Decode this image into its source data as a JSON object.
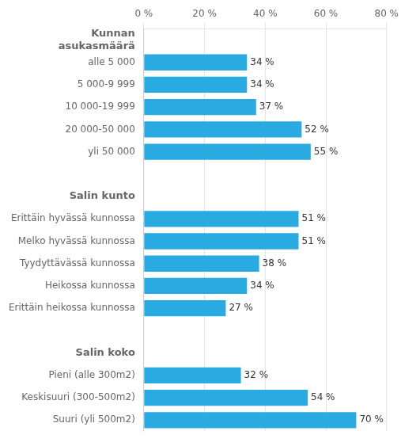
{
  "chart_data": {
    "type": "bar",
    "orientation": "horizontal",
    "categories": [
      "Kunnan\nasukasmäärä",
      "alle 5 000",
      "5 000-9 999",
      "10 000-19 999",
      "20 000-50 000",
      "yli 50 000",
      null,
      "Salin kunto",
      "Erittäin hyvässä kunnossa",
      "Melko hyvässä kunnossa",
      "Tyydyttävässä kunnossa",
      "Heikossa kunnossa",
      "Erittäin heikossa kunnossa",
      null,
      "Salin koko",
      "Pieni (alle 300m2)",
      "Keskisuuri (300-500m2)",
      "Suuri (yli 500m2)"
    ],
    "values": [
      null,
      34,
      34,
      37,
      52,
      55,
      null,
      null,
      51,
      51,
      38,
      34,
      27,
      null,
      null,
      32,
      54,
      70
    ],
    "value_labels": [
      null,
      "34 %",
      "34 %",
      "37 %",
      "52 %",
      "55 %",
      null,
      null,
      "51 %",
      "51 %",
      "38 %",
      "34 %",
      "27 %",
      null,
      null,
      "32 %",
      "54 %",
      "70 %"
    ],
    "data_labels": true,
    "color": "#29ABE2",
    "xlim": [
      0,
      80
    ],
    "xticks": [
      {
        "value": 0,
        "label": "0 %"
      },
      {
        "value": 20,
        "label": "20 %"
      },
      {
        "value": 40,
        "label": "40 %"
      },
      {
        "value": 60,
        "label": "60 %"
      },
      {
        "value": 80,
        "label": "80 %"
      }
    ],
    "grid": true
  }
}
